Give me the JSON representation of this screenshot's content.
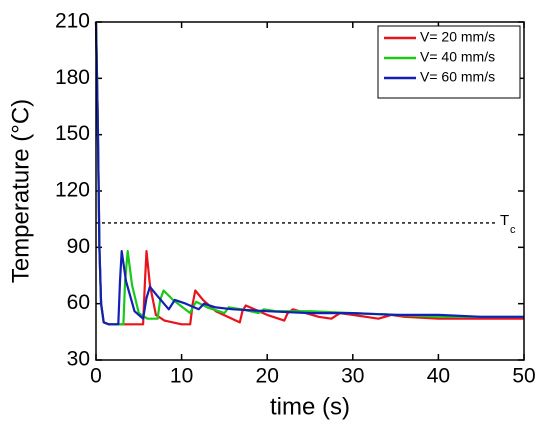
{
  "chart_data": {
    "type": "line",
    "x_label": "time (s)",
    "y_label": "Temperature (°C)",
    "xlim": [
      0,
      50
    ],
    "ylim": [
      30,
      210
    ],
    "xticks": [
      0,
      10,
      20,
      30,
      40,
      50
    ],
    "yticks": [
      30,
      60,
      90,
      120,
      150,
      180,
      210
    ],
    "legend": "upper right",
    "threshold": {
      "value": 103,
      "label": "T",
      "subscript": "c"
    },
    "series": [
      {
        "name": "V= 20 mm/s",
        "color": "#e8141c",
        "x": [
          0,
          0.2,
          0.4,
          0.6,
          0.9,
          1.5,
          3,
          5.5,
          5.7,
          5.9,
          6.3,
          7,
          8,
          9,
          10,
          11,
          11.3,
          11.6,
          12.5,
          14,
          16.8,
          17.1,
          17.5,
          18.5,
          20,
          22,
          22.4,
          23,
          24.5,
          26,
          27.5,
          28.5,
          30,
          33,
          34.5,
          36,
          40,
          45,
          50
        ],
        "values": [
          210,
          160,
          90,
          60,
          50,
          49,
          49,
          49,
          70,
          88,
          70,
          54,
          51,
          50,
          49,
          49,
          60,
          67,
          62,
          56,
          50,
          56,
          59,
          57,
          54,
          51,
          55,
          57,
          55,
          53,
          52,
          55,
          54,
          52,
          54,
          53,
          52,
          52,
          52
        ]
      },
      {
        "name": "V= 40 mm/s",
        "color": "#19c819",
        "x": [
          0,
          0.2,
          0.4,
          0.6,
          0.9,
          1.5,
          3.2,
          3.4,
          3.7,
          4.2,
          5,
          6,
          7.2,
          7.5,
          7.9,
          9,
          11,
          11.3,
          11.7,
          13,
          15,
          15.5,
          17,
          19,
          19.6,
          21,
          25,
          30,
          35,
          40,
          45,
          50
        ],
        "values": [
          210,
          160,
          90,
          60,
          50,
          49,
          49,
          72,
          88,
          70,
          55,
          52,
          52,
          62,
          67,
          62,
          55,
          58,
          61,
          58,
          55,
          58,
          57,
          55,
          57,
          56,
          56,
          55,
          54,
          53,
          53,
          53
        ]
      },
      {
        "name": "V= 60 mm/s",
        "color": "#1420b4",
        "x": [
          0,
          0.2,
          0.4,
          0.6,
          0.9,
          1.5,
          2.6,
          2.8,
          3.0,
          3.5,
          4.5,
          5.5,
          5.9,
          6.3,
          7.2,
          8.5,
          9.2,
          10.5,
          12,
          12.6,
          14,
          16,
          20,
          25,
          30,
          35,
          40,
          45,
          50
        ],
        "values": [
          210,
          160,
          90,
          60,
          50,
          49,
          49,
          72,
          88,
          72,
          56,
          52,
          63,
          69,
          64,
          57,
          62,
          60,
          57,
          60,
          58,
          57,
          56,
          55,
          55,
          54,
          54,
          53,
          53
        ]
      }
    ]
  }
}
